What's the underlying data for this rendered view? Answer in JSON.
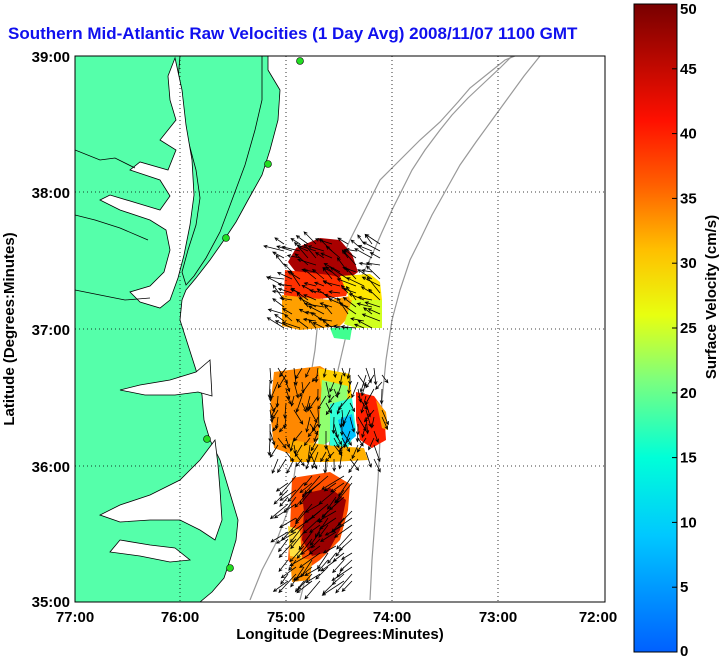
{
  "title": "Southern Mid-Atlantic Raw Velocities (1 Day Avg) 2008/11/07 1100 GMT",
  "x_axis": {
    "label": "Longitude (Degrees:Minutes)",
    "ticks": [
      "77:00",
      "76:00",
      "75:00",
      "74:00",
      "73:00",
      "72:00"
    ]
  },
  "y_axis": {
    "label": "Latitude (Degrees:Minutes)",
    "ticks": [
      "39:00",
      "38:00",
      "37:00",
      "36:00",
      "35:00"
    ]
  },
  "colorbar": {
    "label": "Surface Velocity (cm/s)",
    "ticks": [
      "0",
      "5",
      "10",
      "15",
      "20",
      "25",
      "30",
      "35",
      "40",
      "45",
      "50"
    ],
    "min": 0,
    "max": 50
  },
  "colors": {
    "land": "#55ffaa",
    "title": "#1010ee",
    "station": "#22dd22"
  }
}
